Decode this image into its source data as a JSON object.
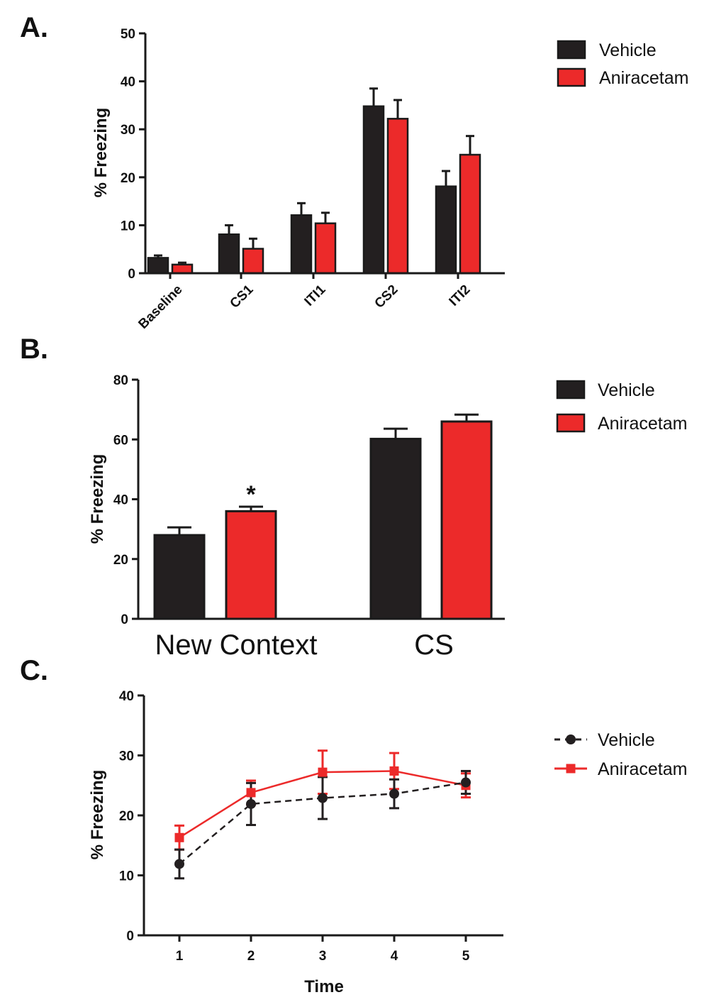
{
  "colors": {
    "vehicle": "#231f20",
    "aniracetam": "#ec2a2a",
    "axis": "#1a1a1a"
  },
  "chart_data": [
    {
      "panel_label": "A.",
      "type": "bar",
      "categories": [
        "Baseline",
        "CS1",
        "ITI1",
        "CS2",
        "ITI2"
      ],
      "ylabel": "%  Freezing",
      "ylim": [
        0,
        50
      ],
      "yticks": [
        0,
        10,
        20,
        30,
        40,
        50
      ],
      "legend": [
        "Vehicle",
        "Aniracetam"
      ],
      "series": [
        {
          "name": "Vehicle",
          "values": [
            3.2,
            8.1,
            12.1,
            34.8,
            18.1
          ],
          "errors": [
            0.5,
            1.9,
            2.5,
            3.7,
            3.2
          ]
        },
        {
          "name": "Aniracetam",
          "values": [
            1.8,
            5.1,
            10.4,
            32.2,
            24.7
          ],
          "errors": [
            0.4,
            2.1,
            2.2,
            3.9,
            3.9
          ]
        }
      ]
    },
    {
      "panel_label": "B.",
      "type": "bar",
      "categories": [
        "New Context",
        "CS"
      ],
      "ylabel": "%  Freezing",
      "ylim": [
        0,
        80
      ],
      "yticks": [
        0,
        20,
        40,
        60,
        80
      ],
      "legend": [
        "Vehicle",
        "Aniracetam"
      ],
      "annotation": "*",
      "series": [
        {
          "name": "Vehicle",
          "values": [
            28.0,
            60.2
          ],
          "errors": [
            2.6,
            3.4
          ]
        },
        {
          "name": "Aniracetam",
          "values": [
            36.0,
            66.0
          ],
          "errors": [
            1.5,
            2.3
          ]
        }
      ]
    },
    {
      "panel_label": "C.",
      "type": "line",
      "x": [
        1,
        2,
        3,
        4,
        5
      ],
      "xlabel": "Time",
      "ylabel": "% Freezing",
      "ylim": [
        0,
        40
      ],
      "yticks": [
        0,
        10,
        20,
        30,
        40
      ],
      "xticks": [
        1,
        2,
        3,
        4,
        5
      ],
      "legend": [
        "Vehicle",
        "Aniracetam"
      ],
      "series": [
        {
          "name": "Vehicle",
          "values": [
            11.9,
            21.9,
            22.9,
            23.6,
            25.5
          ],
          "errors": [
            2.4,
            3.5,
            3.5,
            2.4,
            1.9
          ]
        },
        {
          "name": "Aniracetam",
          "values": [
            16.3,
            23.8,
            27.2,
            27.4,
            25.0
          ],
          "errors": [
            2.0,
            2.0,
            3.6,
            3.0,
            2.0
          ]
        }
      ]
    }
  ]
}
